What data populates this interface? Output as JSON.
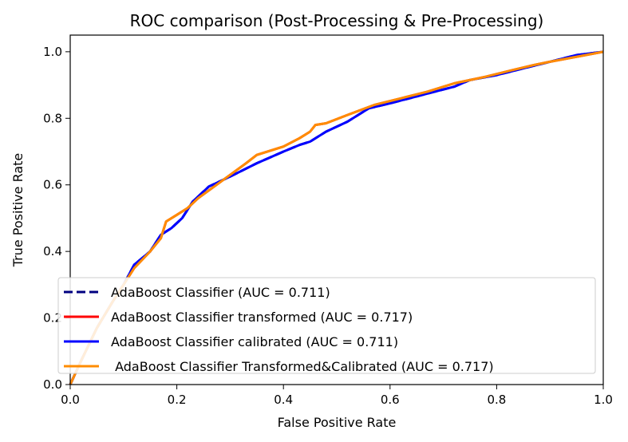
{
  "chart_data": {
    "type": "line",
    "title": "ROC comparison (Post-Processing & Pre-Processing)",
    "xlabel": "False Positive Rate",
    "ylabel": "True Positive Rate",
    "xlim": [
      0.0,
      1.0
    ],
    "ylim": [
      0.0,
      1.05
    ],
    "x_ticks": [
      "0.0",
      "0.2",
      "0.4",
      "0.6",
      "0.8",
      "1.0"
    ],
    "y_ticks": [
      "0.0",
      "0.2",
      "0.4",
      "0.6",
      "0.8",
      "1.0"
    ],
    "legend_position": "lower-right",
    "series": [
      {
        "name": "AdaBoost Classifier (AUC = 0.711)",
        "color": "#000080",
        "dash": true,
        "points": [
          [
            0,
            0
          ],
          [
            0.02,
            0.07
          ],
          [
            0.05,
            0.17
          ],
          [
            0.08,
            0.25
          ],
          [
            0.1,
            0.3
          ],
          [
            0.12,
            0.36
          ],
          [
            0.15,
            0.4
          ],
          [
            0.17,
            0.45
          ],
          [
            0.19,
            0.47
          ],
          [
            0.21,
            0.5
          ],
          [
            0.23,
            0.55
          ],
          [
            0.26,
            0.595
          ],
          [
            0.3,
            0.625
          ],
          [
            0.35,
            0.665
          ],
          [
            0.4,
            0.7
          ],
          [
            0.43,
            0.72
          ],
          [
            0.45,
            0.73
          ],
          [
            0.48,
            0.76
          ],
          [
            0.52,
            0.79
          ],
          [
            0.56,
            0.83
          ],
          [
            0.6,
            0.845
          ],
          [
            0.66,
            0.87
          ],
          [
            0.72,
            0.895
          ],
          [
            0.75,
            0.915
          ],
          [
            0.8,
            0.93
          ],
          [
            0.85,
            0.95
          ],
          [
            0.9,
            0.97
          ],
          [
            0.95,
            0.99
          ],
          [
            1.0,
            1.0
          ]
        ]
      },
      {
        "name": "AdaBoost Classifier transformed (AUC = 0.717)",
        "color": "#ff0000",
        "dash": false,
        "points": [
          [
            0,
            0
          ],
          [
            0.02,
            0.07
          ],
          [
            0.05,
            0.17
          ],
          [
            0.08,
            0.25
          ],
          [
            0.1,
            0.3
          ],
          [
            0.12,
            0.35
          ],
          [
            0.15,
            0.4
          ],
          [
            0.17,
            0.44
          ],
          [
            0.18,
            0.49
          ],
          [
            0.2,
            0.51
          ],
          [
            0.22,
            0.53
          ],
          [
            0.24,
            0.56
          ],
          [
            0.27,
            0.595
          ],
          [
            0.3,
            0.63
          ],
          [
            0.33,
            0.665
          ],
          [
            0.35,
            0.69
          ],
          [
            0.4,
            0.715
          ],
          [
            0.43,
            0.74
          ],
          [
            0.45,
            0.76
          ],
          [
            0.46,
            0.78
          ],
          [
            0.48,
            0.785
          ],
          [
            0.52,
            0.81
          ],
          [
            0.57,
            0.84
          ],
          [
            0.62,
            0.86
          ],
          [
            0.67,
            0.88
          ],
          [
            0.72,
            0.905
          ],
          [
            0.78,
            0.925
          ],
          [
            0.83,
            0.945
          ],
          [
            0.87,
            0.96
          ],
          [
            0.9,
            0.97
          ],
          [
            0.95,
            0.985
          ],
          [
            1.0,
            1.0
          ]
        ]
      },
      {
        "name": "AdaBoost Classifier calibrated (AUC = 0.711)",
        "color": "#0000ff",
        "dash": false,
        "points": [
          [
            0,
            0
          ],
          [
            0.02,
            0.07
          ],
          [
            0.05,
            0.17
          ],
          [
            0.08,
            0.25
          ],
          [
            0.1,
            0.3
          ],
          [
            0.12,
            0.36
          ],
          [
            0.15,
            0.4
          ],
          [
            0.17,
            0.45
          ],
          [
            0.19,
            0.47
          ],
          [
            0.21,
            0.5
          ],
          [
            0.23,
            0.55
          ],
          [
            0.26,
            0.595
          ],
          [
            0.3,
            0.625
          ],
          [
            0.35,
            0.665
          ],
          [
            0.4,
            0.7
          ],
          [
            0.43,
            0.72
          ],
          [
            0.45,
            0.73
          ],
          [
            0.48,
            0.76
          ],
          [
            0.52,
            0.79
          ],
          [
            0.56,
            0.83
          ],
          [
            0.6,
            0.845
          ],
          [
            0.66,
            0.87
          ],
          [
            0.72,
            0.895
          ],
          [
            0.75,
            0.915
          ],
          [
            0.8,
            0.93
          ],
          [
            0.85,
            0.95
          ],
          [
            0.9,
            0.97
          ],
          [
            0.95,
            0.99
          ],
          [
            1.0,
            1.0
          ]
        ]
      },
      {
        "name": " AdaBoost Classifier Transformed&Calibrated (AUC = 0.717)",
        "color": "#ff8c00",
        "dash": false,
        "points": [
          [
            0,
            0
          ],
          [
            0.02,
            0.07
          ],
          [
            0.05,
            0.17
          ],
          [
            0.08,
            0.25
          ],
          [
            0.1,
            0.3
          ],
          [
            0.12,
            0.35
          ],
          [
            0.15,
            0.4
          ],
          [
            0.17,
            0.44
          ],
          [
            0.18,
            0.49
          ],
          [
            0.2,
            0.51
          ],
          [
            0.22,
            0.53
          ],
          [
            0.24,
            0.56
          ],
          [
            0.27,
            0.595
          ],
          [
            0.3,
            0.63
          ],
          [
            0.33,
            0.665
          ],
          [
            0.35,
            0.69
          ],
          [
            0.4,
            0.715
          ],
          [
            0.43,
            0.74
          ],
          [
            0.45,
            0.76
          ],
          [
            0.46,
            0.78
          ],
          [
            0.48,
            0.785
          ],
          [
            0.52,
            0.81
          ],
          [
            0.57,
            0.84
          ],
          [
            0.62,
            0.86
          ],
          [
            0.67,
            0.88
          ],
          [
            0.72,
            0.905
          ],
          [
            0.78,
            0.925
          ],
          [
            0.83,
            0.945
          ],
          [
            0.87,
            0.96
          ],
          [
            0.9,
            0.97
          ],
          [
            0.95,
            0.985
          ],
          [
            1.0,
            1.0
          ]
        ]
      }
    ]
  }
}
